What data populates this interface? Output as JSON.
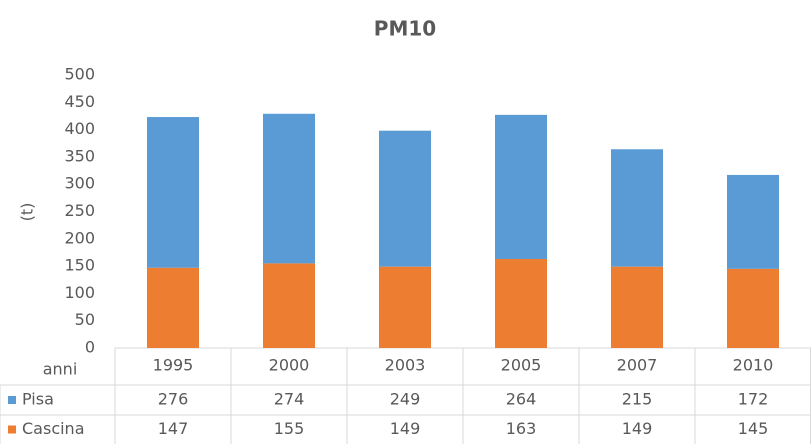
{
  "chart_data": {
    "type": "bar",
    "stacked": true,
    "title": "PM10",
    "y_label": "(t)",
    "table_header": "anni",
    "categories": [
      "1995",
      "2000",
      "2003",
      "2005",
      "2007",
      "2010"
    ],
    "series": [
      {
        "name": "Pisa",
        "color": "#5b9bd5",
        "values": [
          276,
          274,
          249,
          264,
          215,
          172
        ]
      },
      {
        "name": "Cascina",
        "color": "#ed7d31",
        "values": [
          147,
          155,
          149,
          163,
          149,
          145
        ]
      }
    ],
    "ylim": [
      0,
      500
    ],
    "yticks": [
      0,
      50,
      100,
      150,
      200,
      250,
      300,
      350,
      400,
      450,
      500
    ],
    "grid": false
  }
}
